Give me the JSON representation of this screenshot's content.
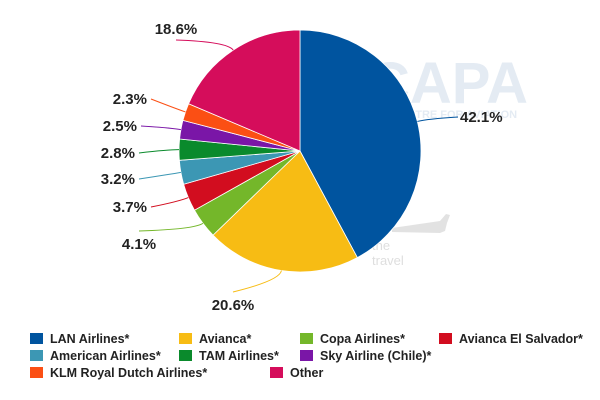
{
  "watermark": {
    "logo": "CAPA",
    "tagline": "CENTRE FOR AVIATION",
    "slogan_line1": "the",
    "slogan_line2": "travel"
  },
  "chart_data": {
    "type": "pie",
    "title": "",
    "start_angle_deg": 0,
    "direction": "clockwise",
    "slices": [
      {
        "name": "LAN Airlines*",
        "value": 42.1,
        "label": "42.1%",
        "color": "#00549f"
      },
      {
        "name": "Avianca*",
        "value": 20.6,
        "label": "20.6%",
        "color": "#f7bc14"
      },
      {
        "name": "Copa Airlines*",
        "value": 4.1,
        "label": "4.1%",
        "color": "#74b72a"
      },
      {
        "name": "Avianca El Salvador*",
        "value": 3.7,
        "label": "3.7%",
        "color": "#d20d1f"
      },
      {
        "name": "American Airlines*",
        "value": 3.2,
        "label": "3.2%",
        "color": "#3c97b4"
      },
      {
        "name": "TAM Airlines*",
        "value": 2.8,
        "label": "2.8%",
        "color": "#0a8a2c"
      },
      {
        "name": "Sky Airline (Chile)*",
        "value": 2.5,
        "label": "2.5%",
        "color": "#7a16a7"
      },
      {
        "name": "KLM Royal Dutch Airlines*",
        "value": 2.3,
        "label": "2.3%",
        "color": "#fb4f14"
      },
      {
        "name": "Other",
        "value": 18.6,
        "label": "18.6%",
        "color": "#d50d5b"
      }
    ],
    "legend_position": "bottom"
  }
}
